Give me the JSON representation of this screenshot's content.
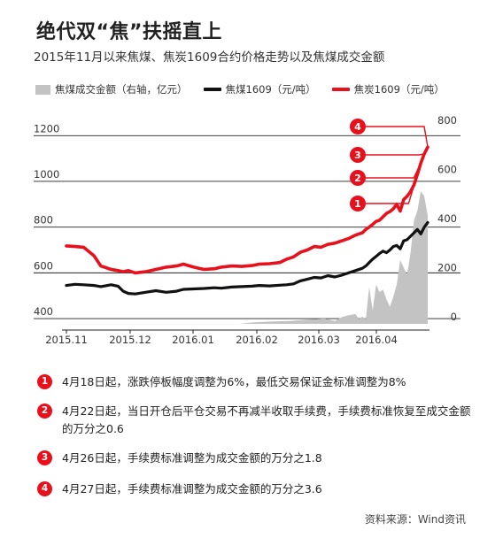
{
  "header": {
    "title": "绝代双“焦”扶摇直上",
    "subtitle": "2015年11月以来焦煤、焦炭1609合约价格走势以及焦煤成交金额"
  },
  "legend": {
    "area_label": "焦煤成交金额（右轴，亿元）",
    "coal_label": "焦煤1609（元/吨）",
    "coke_label": "焦炭1609（元/吨）"
  },
  "chart_data": {
    "type": "line",
    "x_tick_labels": [
      "2015.11",
      "2015.12",
      "2016.01",
      "2016.02",
      "2016.03",
      "2016.04"
    ],
    "y_left_ticks": [
      "400",
      "600",
      "800",
      "1000",
      "1200"
    ],
    "y_right_ticks": [
      "0",
      "200",
      "400",
      "600",
      "800"
    ],
    "y_left_range": [
      350,
      1290
    ],
    "y_right_range": [
      -25,
      850
    ],
    "grid": true,
    "legend_position": "top",
    "colors": {
      "coal": "#111111",
      "coke": "#e8101b",
      "volume": "#c3c3c3"
    },
    "series": [
      {
        "name": "焦煤1609（元/吨）",
        "axis": "left",
        "x": [
          0,
          5,
          10,
          16,
          20,
          26,
          30,
          33,
          36,
          40,
          46,
          52,
          58,
          64,
          68,
          74,
          80,
          86,
          90,
          96,
          102,
          108,
          112,
          118,
          124,
          128,
          132,
          136,
          140,
          144,
          148,
          152,
          156,
          160,
          164,
          168,
          172,
          174,
          176,
          178,
          180,
          182,
          184,
          186,
          188,
          190,
          192,
          194,
          196,
          198,
          200,
          202,
          204,
          206,
          208,
          210
        ],
        "values": [
          545,
          550,
          548,
          545,
          540,
          548,
          542,
          520,
          510,
          508,
          515,
          522,
          515,
          520,
          528,
          530,
          532,
          535,
          533,
          538,
          540,
          542,
          545,
          543,
          546,
          548,
          552,
          565,
          572,
          580,
          578,
          588,
          582,
          590,
          600,
          610,
          620,
          630,
          645,
          660,
          672,
          685,
          695,
          688,
          700,
          715,
          720,
          705,
          740,
          745,
          760,
          775,
          790,
          770,
          800,
          820
        ]
      },
      {
        "name": "焦炭1609（元/吨）",
        "axis": "left",
        "x": [
          0,
          5,
          10,
          16,
          20,
          26,
          30,
          33,
          36,
          40,
          46,
          52,
          58,
          64,
          68,
          74,
          80,
          86,
          90,
          96,
          102,
          108,
          112,
          118,
          124,
          128,
          132,
          136,
          140,
          144,
          148,
          152,
          156,
          160,
          164,
          168,
          172,
          174,
          176,
          178,
          180,
          182,
          184,
          186,
          188,
          190,
          192,
          194,
          196,
          198,
          200,
          202,
          204,
          206,
          208,
          210
        ],
        "values": [
          718,
          715,
          712,
          675,
          630,
          615,
          610,
          605,
          610,
          600,
          605,
          615,
          625,
          630,
          638,
          625,
          615,
          618,
          625,
          630,
          628,
          632,
          638,
          640,
          645,
          660,
          670,
          690,
          700,
          715,
          712,
          725,
          730,
          740,
          750,
          765,
          775,
          790,
          800,
          812,
          825,
          830,
          845,
          860,
          868,
          880,
          900,
          870,
          920,
          935,
          955,
          985,
          1030,
          1080,
          1120,
          1150
        ]
      },
      {
        "name": "焦煤成交金额（右轴，亿元）",
        "axis": "right",
        "x": [
          0,
          100,
          108,
          120,
          130,
          140,
          150,
          156,
          160,
          164,
          168,
          170,
          172,
          174,
          176,
          178,
          180,
          182,
          184,
          186,
          188,
          190,
          192,
          194,
          196,
          198,
          200,
          202,
          204,
          206,
          208,
          210
        ],
        "values": [
          0,
          0,
          6,
          10,
          12,
          18,
          22,
          12,
          28,
          35,
          40,
          20,
          30,
          20,
          150,
          55,
          160,
          130,
          140,
          100,
          70,
          110,
          160,
          260,
          230,
          200,
          290,
          420,
          460,
          540,
          520,
          440
        ]
      }
    ],
    "annotations": [
      "1",
      "2",
      "3",
      "4"
    ]
  },
  "notes": [
    {
      "num": "1",
      "text": "4月18日起，涨跌停板幅度调整为6%，最低交易保证金标准调整为8%"
    },
    {
      "num": "2",
      "text": "4月22日起，当日开仓后平仓交易不再减半收取手续费，手续费标准恢复至成交金额的万分之0.6"
    },
    {
      "num": "3",
      "text": "4月26日起，手续费标准调整为成交金额的万分之1.8"
    },
    {
      "num": "4",
      "text": "4月27日起，手续费标准调整为成交金额的万分之3.6"
    }
  ],
  "source": "资料来源：Wind资讯"
}
